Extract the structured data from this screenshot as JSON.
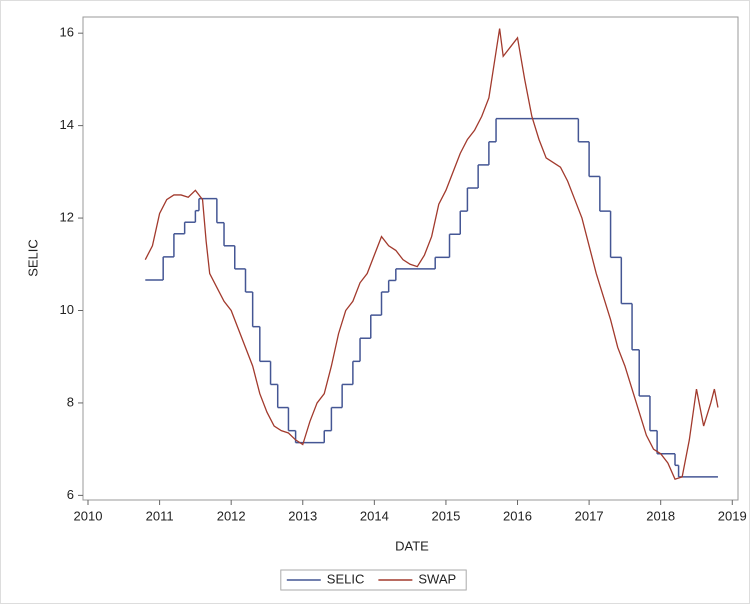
{
  "chart_data": {
    "type": "line",
    "x_label": "DATE",
    "y_label": "SELIC",
    "xlim": [
      2009.93,
      2019.08
    ],
    "ylim": [
      5.9,
      16.35
    ],
    "xticks": [
      2010,
      2011,
      2012,
      2013,
      2014,
      2015,
      2016,
      2017,
      2018,
      2019
    ],
    "yticks": [
      6,
      8,
      10,
      12,
      14,
      16
    ],
    "legend": "bottom",
    "series": [
      {
        "name": "SELIC",
        "color": "#445694",
        "step": "post",
        "x": [
          2010.8,
          2011.05,
          2011.2,
          2011.35,
          2011.5,
          2011.55,
          2011.8,
          2011.9,
          2012.05,
          2012.2,
          2012.3,
          2012.4,
          2012.55,
          2012.65,
          2012.8,
          2012.9,
          2013.3,
          2013.4,
          2013.55,
          2013.7,
          2013.8,
          2013.95,
          2014.1,
          2014.2,
          2014.3,
          2014.85,
          2015.05,
          2015.2,
          2015.3,
          2015.45,
          2015.6,
          2015.7,
          2016.85,
          2017.0,
          2017.15,
          2017.3,
          2017.45,
          2017.6,
          2017.7,
          2017.85,
          2017.95,
          2018.2,
          2018.25,
          2018.8
        ],
        "values": [
          10.66,
          11.16,
          11.66,
          11.91,
          12.16,
          12.42,
          11.9,
          11.4,
          10.9,
          10.4,
          9.65,
          8.9,
          8.4,
          7.9,
          7.4,
          7.14,
          7.4,
          7.9,
          8.4,
          8.9,
          9.4,
          9.9,
          10.4,
          10.65,
          10.9,
          11.15,
          11.65,
          12.15,
          12.65,
          13.15,
          13.65,
          14.15,
          13.65,
          12.9,
          12.15,
          11.15,
          10.15,
          9.15,
          8.15,
          7.4,
          6.9,
          6.65,
          6.4,
          6.4
        ]
      },
      {
        "name": "SWAP",
        "color": "#a23a2d",
        "x": [
          2010.8,
          2010.9,
          2011.0,
          2011.1,
          2011.2,
          2011.3,
          2011.4,
          2011.5,
          2011.6,
          2011.65,
          2011.7,
          2011.8,
          2011.9,
          2012.0,
          2012.1,
          2012.2,
          2012.3,
          2012.4,
          2012.5,
          2012.6,
          2012.7,
          2012.8,
          2012.9,
          2013.0,
          2013.1,
          2013.2,
          2013.3,
          2013.4,
          2013.5,
          2013.6,
          2013.7,
          2013.8,
          2013.9,
          2014.0,
          2014.1,
          2014.2,
          2014.3,
          2014.4,
          2014.5,
          2014.6,
          2014.7,
          2014.8,
          2014.9,
          2015.0,
          2015.1,
          2015.2,
          2015.3,
          2015.4,
          2015.5,
          2015.6,
          2015.7,
          2015.75,
          2015.8,
          2015.9,
          2016.0,
          2016.1,
          2016.2,
          2016.3,
          2016.4,
          2016.5,
          2016.6,
          2016.7,
          2016.8,
          2016.9,
          2017.0,
          2017.1,
          2017.2,
          2017.3,
          2017.4,
          2017.5,
          2017.6,
          2017.7,
          2017.8,
          2017.9,
          2018.0,
          2018.1,
          2018.2,
          2018.3,
          2018.4,
          2018.5,
          2018.6,
          2018.7,
          2018.75,
          2018.8
        ],
        "values": [
          11.1,
          11.4,
          12.1,
          12.4,
          12.5,
          12.5,
          12.45,
          12.6,
          12.4,
          11.5,
          10.8,
          10.5,
          10.2,
          10.0,
          9.6,
          9.2,
          8.8,
          8.2,
          7.8,
          7.5,
          7.4,
          7.35,
          7.2,
          7.1,
          7.6,
          8.0,
          8.2,
          8.8,
          9.5,
          10.0,
          10.2,
          10.6,
          10.8,
          11.2,
          11.6,
          11.4,
          11.3,
          11.1,
          11.0,
          10.95,
          11.2,
          11.6,
          12.3,
          12.6,
          13.0,
          13.4,
          13.7,
          13.9,
          14.2,
          14.6,
          15.6,
          16.1,
          15.5,
          15.7,
          15.9,
          15.0,
          14.2,
          13.7,
          13.3,
          13.2,
          13.1,
          12.8,
          12.4,
          12.0,
          11.4,
          10.8,
          10.3,
          9.8,
          9.2,
          8.8,
          8.3,
          7.8,
          7.3,
          7.0,
          6.9,
          6.7,
          6.35,
          6.4,
          7.2,
          8.3,
          7.5,
          8.0,
          8.3,
          7.9
        ]
      }
    ]
  }
}
